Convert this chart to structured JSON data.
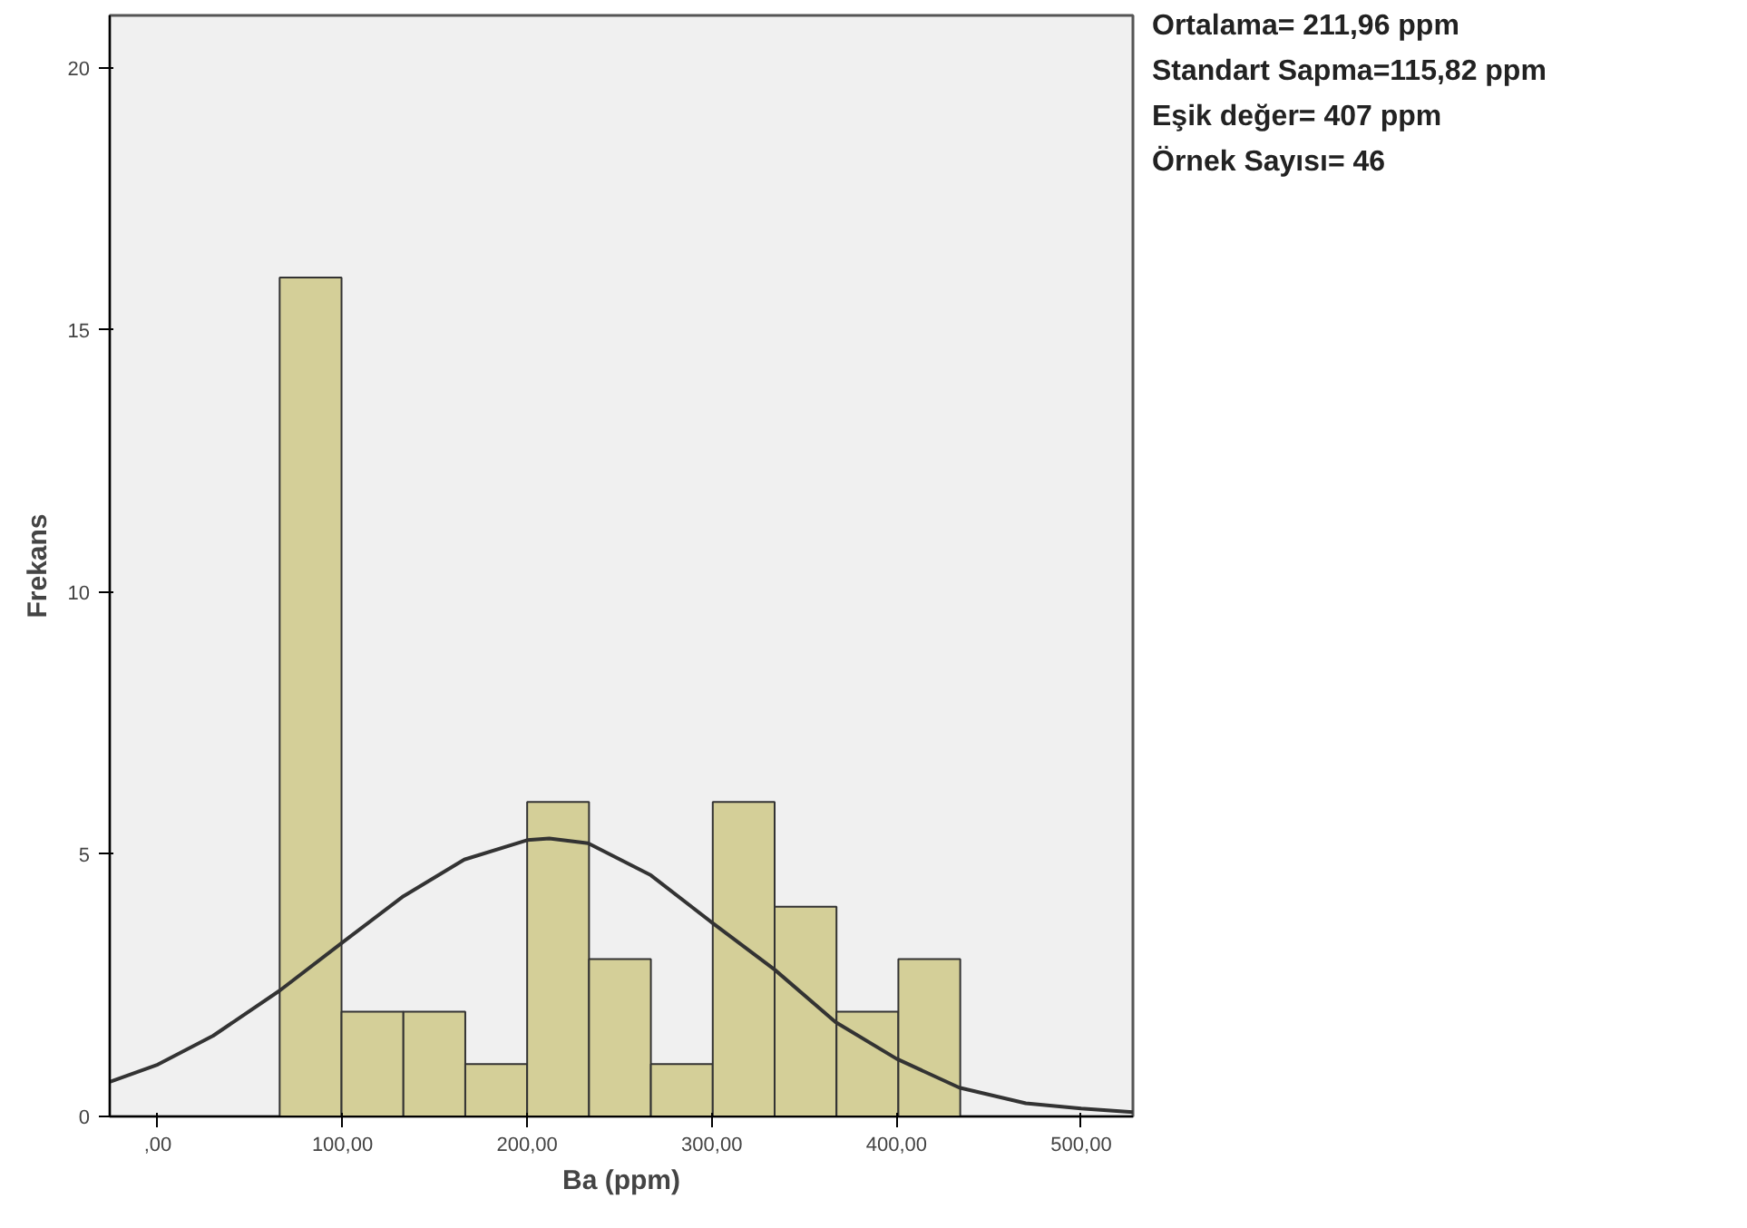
{
  "chart_data": {
    "type": "histogram",
    "xlabel": "Ba (ppm)",
    "ylabel": "Frekans",
    "bins": [
      66,
      99.5,
      133,
      166.5,
      200,
      233.5,
      267,
      300.5,
      334,
      367.5,
      401,
      434.5
    ],
    "values": [
      16,
      2,
      2,
      1,
      6,
      3,
      1,
      6,
      4,
      2,
      3
    ],
    "color": "#d4cf98",
    "series": [
      {
        "type": "line",
        "color": "#333333",
        "x": [
          -26,
          0,
          30,
          66,
          100,
          133,
          166,
          200,
          212,
          233,
          267,
          300,
          334,
          367,
          400,
          434,
          470,
          500,
          528
        ],
        "values": [
          0.66,
          0.99,
          1.54,
          2.4,
          3.32,
          4.2,
          4.9,
          5.27,
          5.3,
          5.21,
          4.6,
          3.7,
          2.8,
          1.8,
          1.1,
          0.55,
          0.25,
          0.15,
          0.08
        ]
      }
    ],
    "xlim": [
      -26,
      528
    ],
    "ylim": [
      0,
      21
    ],
    "xticks": [
      {
        "value": 0,
        "label": ",00"
      },
      {
        "value": 100,
        "label": "100,00"
      },
      {
        "value": 200,
        "label": "200,00"
      },
      {
        "value": 300,
        "label": "300,00"
      },
      {
        "value": 400,
        "label": "400,00"
      },
      {
        "value": 500,
        "label": "500,00"
      }
    ],
    "yticks": [
      0,
      5,
      10,
      15,
      20
    ],
    "grid": false,
    "annotations": [
      "Ortalama= 211,96 ppm",
      "Standart Sapma=115,82 ppm",
      "Eşik değer= 407 ppm",
      "Örnek Sayısı= 46"
    ]
  }
}
